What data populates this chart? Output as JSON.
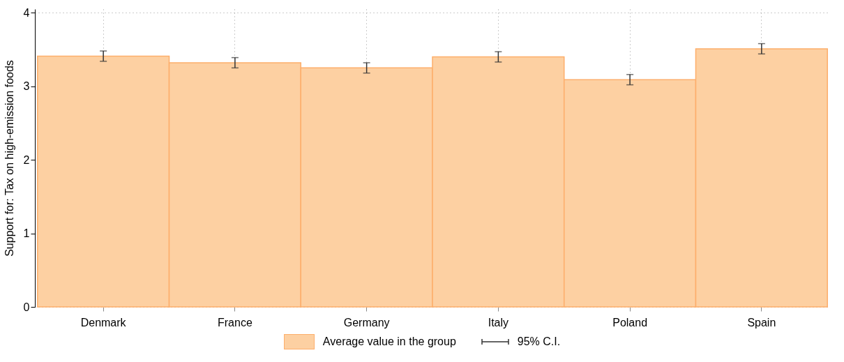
{
  "chart_data": {
    "type": "bar",
    "ylabel": "Support for: Tax on high-emission foods",
    "categories": [
      "Denmark",
      "France",
      "Germany",
      "Italy",
      "Poland",
      "Spain"
    ],
    "series": [
      {
        "name": "Average value in the group",
        "color": "#fdd0a2",
        "values": [
          3.41,
          3.32,
          3.25,
          3.4,
          3.09,
          3.51
        ],
        "errors": [
          0.07,
          0.07,
          0.07,
          0.07,
          0.07,
          0.07
        ]
      }
    ],
    "annotations": [
      "95% C.I."
    ],
    "ylim": [
      0,
      4.05
    ],
    "yticks": [
      0,
      1,
      2,
      3,
      4
    ],
    "grid": true,
    "legend": "bottom"
  }
}
